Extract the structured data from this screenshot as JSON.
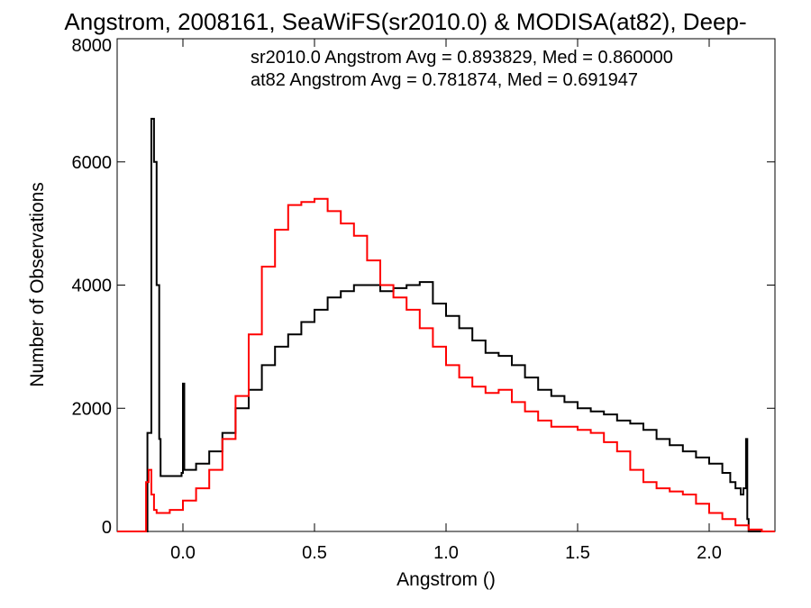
{
  "chart_data": {
    "type": "line",
    "title": "Angstrom, 2008161, SeaWiFS(sr2010.0) & MODISA(at82), Deep-",
    "xlabel": "Angstrom ()",
    "ylabel": "Number of Observations",
    "xlim": [
      -0.25,
      2.25
    ],
    "ylim": [
      0,
      8000
    ],
    "x_ticks": [
      {
        "value": 0.0,
        "label": "0.0"
      },
      {
        "value": 0.5,
        "label": "0.5"
      },
      {
        "value": 1.0,
        "label": "1.0"
      },
      {
        "value": 1.5,
        "label": "1.5"
      },
      {
        "value": 2.0,
        "label": "2.0"
      }
    ],
    "y_ticks": [
      {
        "value": 0,
        "label": "0"
      },
      {
        "value": 2000,
        "label": "2000"
      },
      {
        "value": 4000,
        "label": "4000"
      },
      {
        "value": 6000,
        "label": "6000"
      },
      {
        "value": 8000,
        "label": "8000"
      }
    ],
    "grid": false,
    "legend": "top-right",
    "annotations": [
      {
        "text": "sr2010.0 Angstrom Avg = 0.893829, Med = 0.860000",
        "color": "#000000"
      },
      {
        "text": "at82 Angstrom Avg = 0.781874, Med = 0.691947",
        "color": "#ff0000"
      }
    ],
    "series": [
      {
        "color": "#000000",
        "points": [
          [
            -0.25,
            0
          ],
          [
            -0.15,
            0
          ],
          [
            -0.135,
            1600
          ],
          [
            -0.12,
            6700
          ],
          [
            -0.11,
            6000
          ],
          [
            -0.1,
            4000
          ],
          [
            -0.09,
            1500
          ],
          [
            -0.085,
            900
          ],
          [
            -0.05,
            900
          ],
          [
            -0.02,
            900
          ],
          [
            -0.005,
            950
          ],
          [
            0.0,
            2400
          ],
          [
            0.005,
            1000
          ],
          [
            0.05,
            1100
          ],
          [
            0.1,
            1300
          ],
          [
            0.15,
            1600
          ],
          [
            0.2,
            2000
          ],
          [
            0.25,
            2300
          ],
          [
            0.3,
            2700
          ],
          [
            0.35,
            3000
          ],
          [
            0.4,
            3200
          ],
          [
            0.45,
            3400
          ],
          [
            0.5,
            3600
          ],
          [
            0.55,
            3800
          ],
          [
            0.6,
            3900
          ],
          [
            0.65,
            4000
          ],
          [
            0.7,
            4000
          ],
          [
            0.75,
            3900
          ],
          [
            0.8,
            3950
          ],
          [
            0.85,
            4000
          ],
          [
            0.9,
            4050
          ],
          [
            0.95,
            3700
          ],
          [
            1.0,
            3500
          ],
          [
            1.05,
            3300
          ],
          [
            1.1,
            3100
          ],
          [
            1.15,
            2900
          ],
          [
            1.2,
            2850
          ],
          [
            1.25,
            2700
          ],
          [
            1.3,
            2500
          ],
          [
            1.35,
            2300
          ],
          [
            1.4,
            2200
          ],
          [
            1.45,
            2100
          ],
          [
            1.5,
            2000
          ],
          [
            1.55,
            1950
          ],
          [
            1.6,
            1900
          ],
          [
            1.65,
            1800
          ],
          [
            1.7,
            1750
          ],
          [
            1.75,
            1650
          ],
          [
            1.8,
            1500
          ],
          [
            1.85,
            1400
          ],
          [
            1.9,
            1300
          ],
          [
            1.95,
            1200
          ],
          [
            2.0,
            1100
          ],
          [
            2.05,
            950
          ],
          [
            2.08,
            800
          ],
          [
            2.1,
            700
          ],
          [
            2.12,
            600
          ],
          [
            2.13,
            700
          ],
          [
            2.14,
            1500
          ],
          [
            2.145,
            200
          ],
          [
            2.15,
            0
          ],
          [
            2.25,
            0
          ]
        ]
      },
      {
        "color": "#ff0000",
        "points": [
          [
            -0.25,
            0
          ],
          [
            -0.15,
            0
          ],
          [
            -0.14,
            800
          ],
          [
            -0.13,
            1000
          ],
          [
            -0.12,
            600
          ],
          [
            -0.11,
            350
          ],
          [
            -0.1,
            300
          ],
          [
            -0.05,
            350
          ],
          [
            0.0,
            500
          ],
          [
            0.05,
            700
          ],
          [
            0.1,
            1000
          ],
          [
            0.15,
            1500
          ],
          [
            0.2,
            2200
          ],
          [
            0.25,
            3200
          ],
          [
            0.3,
            4300
          ],
          [
            0.35,
            4900
          ],
          [
            0.4,
            5300
          ],
          [
            0.45,
            5350
          ],
          [
            0.5,
            5400
          ],
          [
            0.55,
            5200
          ],
          [
            0.6,
            5000
          ],
          [
            0.65,
            4800
          ],
          [
            0.7,
            4400
          ],
          [
            0.75,
            4000
          ],
          [
            0.8,
            3800
          ],
          [
            0.85,
            3600
          ],
          [
            0.9,
            3300
          ],
          [
            0.95,
            3000
          ],
          [
            1.0,
            2700
          ],
          [
            1.05,
            2500
          ],
          [
            1.1,
            2350
          ],
          [
            1.15,
            2250
          ],
          [
            1.2,
            2300
          ],
          [
            1.25,
            2100
          ],
          [
            1.3,
            1950
          ],
          [
            1.35,
            1800
          ],
          [
            1.4,
            1700
          ],
          [
            1.45,
            1700
          ],
          [
            1.5,
            1650
          ],
          [
            1.55,
            1600
          ],
          [
            1.6,
            1450
          ],
          [
            1.65,
            1300
          ],
          [
            1.7,
            1000
          ],
          [
            1.75,
            800
          ],
          [
            1.8,
            700
          ],
          [
            1.85,
            650
          ],
          [
            1.9,
            600
          ],
          [
            1.95,
            450
          ],
          [
            2.0,
            300
          ],
          [
            2.05,
            200
          ],
          [
            2.1,
            100
          ],
          [
            2.15,
            30
          ],
          [
            2.2,
            0
          ],
          [
            2.25,
            0
          ]
        ]
      }
    ]
  }
}
